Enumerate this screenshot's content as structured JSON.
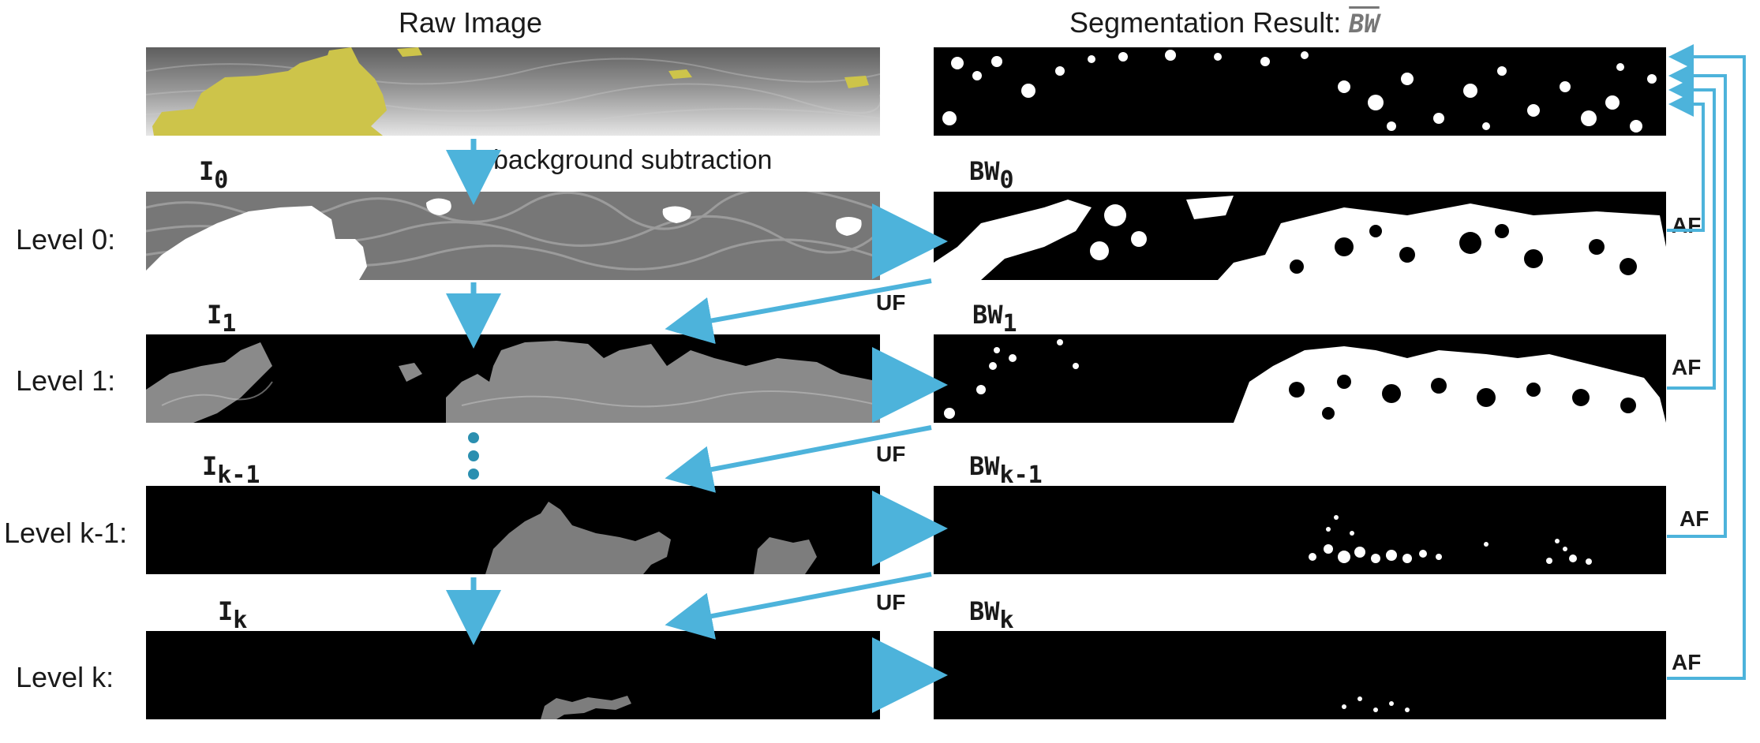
{
  "titles": {
    "raw": "Raw Image",
    "segmentation": "Segmentation Result: ",
    "segmentation_symbol": "BW"
  },
  "note": "background subtraction",
  "rows": [
    {
      "level": "Level 0:",
      "image_var": "I",
      "image_sub": "0",
      "bw_var": "BW",
      "bw_sub": "0",
      "af": "AF"
    },
    {
      "level": "Level 1:",
      "image_var": "I",
      "image_sub": "1",
      "bw_var": "BW",
      "bw_sub": "1",
      "af": "AF"
    },
    {
      "level": "Level k-1:",
      "image_var": "I",
      "image_sub": "k-1",
      "bw_var": "BW",
      "bw_sub": "k-1",
      "af": "AF"
    },
    {
      "level": "Level k:",
      "image_var": "I",
      "image_sub": "k",
      "bw_var": "BW",
      "bw_sub": "k",
      "af": "AF"
    }
  ],
  "uf_labels": [
    "UF",
    "UF",
    "UF"
  ],
  "colors": {
    "arrow": "#4db3db",
    "dots": "#2b8fb0",
    "highlight": "#cdc44a",
    "panel_black": "#000000"
  }
}
